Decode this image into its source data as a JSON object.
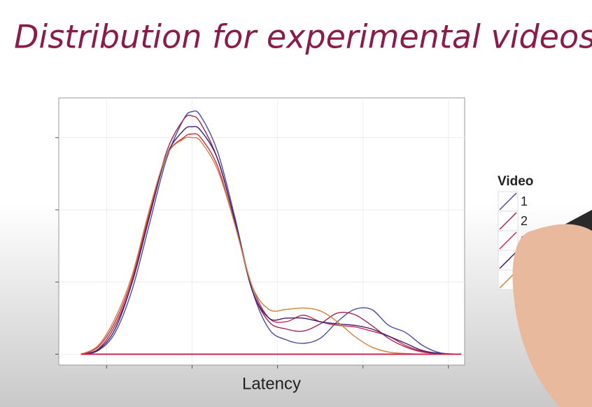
{
  "chart_data": {
    "type": "line",
    "title": "Distribution for experimental videos",
    "x_label": "Latency",
    "legend_title": "Video",
    "legend_position": "right",
    "grid": true,
    "xlim": [
      0.44,
      5.19
    ],
    "xticks": [
      1,
      2,
      3,
      4,
      5
    ],
    "ylim": [
      -0.15,
      3.55
    ],
    "yticks": [
      0,
      1,
      2,
      3
    ],
    "x": [
      0.7,
      0.9,
      1.1,
      1.3,
      1.5,
      1.7,
      1.9,
      2.0,
      2.1,
      2.3,
      2.5,
      2.7,
      2.9,
      3.1,
      3.3,
      3.5,
      3.7,
      3.9,
      4.1,
      4.3,
      4.5,
      4.7,
      4.9,
      5.15
    ],
    "series": [
      {
        "name": "1",
        "color": "#4a4aa0",
        "values": [
          0,
          0.05,
          0.3,
          0.9,
          1.8,
          2.7,
          3.25,
          3.36,
          3.3,
          2.8,
          1.9,
          0.9,
          0.35,
          0.2,
          0.15,
          0.22,
          0.45,
          0.62,
          0.62,
          0.4,
          0.3,
          0.12,
          0.02,
          0
        ]
      },
      {
        "name": "2",
        "color": "#a3244e",
        "values": [
          0,
          0.07,
          0.4,
          1.0,
          1.9,
          2.8,
          3.25,
          3.3,
          3.2,
          2.7,
          1.85,
          0.9,
          0.45,
          0.35,
          0.32,
          0.42,
          0.57,
          0.55,
          0.4,
          0.22,
          0.1,
          0.03,
          0.01,
          0
        ]
      },
      {
        "name": "3",
        "color": "#cc2a48",
        "values": [
          0,
          0.1,
          0.45,
          1.05,
          1.95,
          2.75,
          3.0,
          3.05,
          3.0,
          2.6,
          1.8,
          0.95,
          0.5,
          0.45,
          0.54,
          0.45,
          0.4,
          0.38,
          0.32,
          0.25,
          0.12,
          0.04,
          0.01,
          0
        ]
      },
      {
        "name": "4",
        "color": "#3c1c72",
        "values": [
          0,
          0.06,
          0.35,
          1.0,
          1.9,
          2.75,
          3.1,
          3.15,
          3.1,
          2.7,
          1.85,
          0.9,
          0.5,
          0.5,
          0.5,
          0.45,
          0.42,
          0.4,
          0.35,
          0.25,
          0.15,
          0.05,
          0.01,
          0
        ]
      },
      {
        "name": "5",
        "color": "#d3803c",
        "values": [
          0,
          0.12,
          0.5,
          1.1,
          2.0,
          2.75,
          2.98,
          3.0,
          2.95,
          2.55,
          1.8,
          0.95,
          0.62,
          0.62,
          0.64,
          0.6,
          0.45,
          0.25,
          0.1,
          0.03,
          0.01,
          0,
          0,
          0
        ]
      }
    ]
  }
}
